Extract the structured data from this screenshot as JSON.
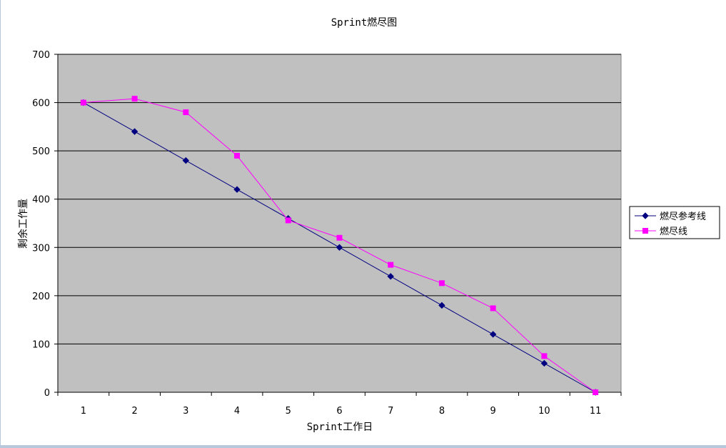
{
  "chart_data": {
    "type": "line",
    "title": "Sprint燃尽图",
    "xlabel": "Sprint工作日",
    "ylabel": "剩余工作量",
    "categories": [
      "1",
      "2",
      "3",
      "4",
      "5",
      "6",
      "7",
      "8",
      "9",
      "10",
      "11"
    ],
    "ylim": [
      0,
      700
    ],
    "yticks": [
      "0",
      "100",
      "200",
      "300",
      "400",
      "500",
      "600",
      "700"
    ],
    "grid": true,
    "legend_position": "right",
    "background_color": "#c0c0c0",
    "series": [
      {
        "name": "燃尽参考线",
        "color": "#000080",
        "marker": "diamond",
        "values": [
          600,
          540,
          480,
          420,
          360,
          300,
          240,
          180,
          120,
          60,
          0
        ]
      },
      {
        "name": "燃尽线",
        "color": "#ff00ff",
        "marker": "square",
        "values": [
          600,
          608,
          580,
          490,
          356,
          320,
          264,
          226,
          174,
          75,
          0
        ]
      }
    ]
  }
}
